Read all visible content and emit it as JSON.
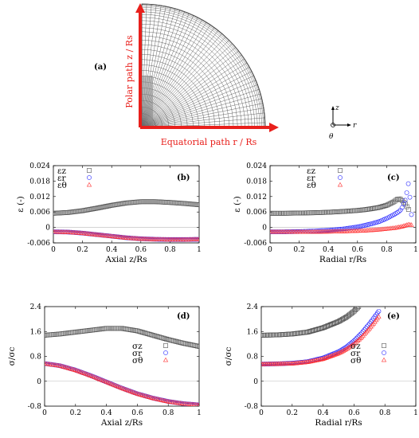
{
  "figure": {
    "panel_a": {
      "label": "(a)",
      "polar_path_label": "Polar path z / Rs",
      "equatorial_path_label": "Equatorial path r / Rs",
      "axes_glyph": {
        "z": "z",
        "r": "r",
        "theta": "θ"
      }
    }
  },
  "colors": {
    "z": "#555555",
    "r": "#2b2bff",
    "theta": "#ff3030",
    "accent": "#e8201c"
  },
  "chart_data": [
    {
      "type": "scatter",
      "panel": "(b)",
      "xlabel": "Axial z/Rs",
      "ylabel": "ε (-)",
      "xlim": [
        0,
        1
      ],
      "ylim": [
        -0.006,
        0.024
      ],
      "xticks": [
        "0",
        "0.2",
        "0.4",
        "0.6",
        "0.8",
        "1"
      ],
      "yticks": [
        "-0.006",
        "0",
        "0.006",
        "0.012",
        "0.018",
        "0.024"
      ],
      "legend": [
        "εz",
        "εr",
        "εθ"
      ],
      "legend_position": "top-left",
      "series": [
        {
          "name": "εz",
          "marker": "square",
          "x": [
            0,
            0.1,
            0.2,
            0.3,
            0.4,
            0.5,
            0.6,
            0.7,
            0.8,
            0.9,
            1.0
          ],
          "y": [
            0.0055,
            0.0058,
            0.0065,
            0.0075,
            0.0086,
            0.0095,
            0.01,
            0.01,
            0.0097,
            0.0093,
            0.0088
          ]
        },
        {
          "name": "εr",
          "marker": "circle",
          "x": [
            0,
            0.1,
            0.2,
            0.3,
            0.4,
            0.5,
            0.6,
            0.7,
            0.8,
            0.9,
            1.0
          ],
          "y": [
            -0.0017,
            -0.0018,
            -0.0022,
            -0.0028,
            -0.0034,
            -0.004,
            -0.0044,
            -0.0046,
            -0.0047,
            -0.0047,
            -0.0046
          ]
        },
        {
          "name": "εθ",
          "marker": "triangle",
          "x": [
            0,
            0.1,
            0.2,
            0.3,
            0.4,
            0.5,
            0.6,
            0.7,
            0.8,
            0.9,
            1.0
          ],
          "y": [
            -0.0017,
            -0.0018,
            -0.0022,
            -0.0028,
            -0.0034,
            -0.004,
            -0.0044,
            -0.0046,
            -0.0047,
            -0.0047,
            -0.0046
          ]
        }
      ]
    },
    {
      "type": "scatter",
      "panel": "(c)",
      "xlabel": "Radial r/Rs",
      "ylabel": "ε (-)",
      "xlim": [
        0,
        1
      ],
      "ylim": [
        -0.006,
        0.024
      ],
      "xticks": [
        "0",
        "0.2",
        "0.4",
        "0.6",
        "0.8",
        "1"
      ],
      "yticks": [
        "-0.006",
        "0",
        "0.006",
        "0.012",
        "0.018",
        "0.024"
      ],
      "legend": [
        "εz",
        "εr",
        "εθ"
      ],
      "legend_position": "top-right",
      "series": [
        {
          "name": "εz",
          "marker": "square",
          "x": [
            0,
            0.1,
            0.2,
            0.3,
            0.4,
            0.5,
            0.6,
            0.65,
            0.7,
            0.75,
            0.8,
            0.85,
            0.88,
            0.9,
            0.93,
            0.95
          ],
          "y": [
            0.0055,
            0.0055,
            0.0056,
            0.0057,
            0.0059,
            0.0062,
            0.0066,
            0.0069,
            0.0073,
            0.0078,
            0.0086,
            0.01,
            0.0112,
            0.0108,
            0.009,
            0.007
          ]
        },
        {
          "name": "εr",
          "marker": "circle",
          "x": [
            0,
            0.1,
            0.2,
            0.3,
            0.4,
            0.5,
            0.6,
            0.65,
            0.7,
            0.75,
            0.8,
            0.85,
            0.88,
            0.9,
            0.93,
            0.95,
            0.97
          ],
          "y": [
            -0.0017,
            -0.0017,
            -0.0016,
            -0.0014,
            -0.0011,
            -0.0006,
            0.0002,
            0.0008,
            0.0015,
            0.0023,
            0.0035,
            0.005,
            0.006,
            0.007,
            0.011,
            0.0175,
            0.005
          ]
        },
        {
          "name": "εθ",
          "marker": "triangle",
          "x": [
            0,
            0.1,
            0.2,
            0.3,
            0.4,
            0.5,
            0.6,
            0.65,
            0.7,
            0.75,
            0.8,
            0.85,
            0.9,
            0.93,
            0.95,
            0.97
          ],
          "y": [
            -0.0017,
            -0.0017,
            -0.0017,
            -0.0017,
            -0.0016,
            -0.0015,
            -0.0013,
            -0.0012,
            -0.001,
            -0.0008,
            -0.0005,
            -0.0002,
            0.0003,
            0.0008,
            0.0012,
            0.001
          ]
        }
      ]
    },
    {
      "type": "scatter",
      "panel": "(d)",
      "xlabel": "Axial z/Rs",
      "ylabel": "σ/σc",
      "xlim": [
        0,
        1
      ],
      "ylim": [
        -0.8,
        2.4
      ],
      "xticks": [
        "0",
        "0.2",
        "0.4",
        "0.6",
        "0.8",
        "1"
      ],
      "yticks": [
        "-0.8",
        "0",
        "0.8",
        "1.6",
        "2.4"
      ],
      "legend": [
        "σz",
        "σr",
        "σθ"
      ],
      "legend_position": "middle-right",
      "series": [
        {
          "name": "σz",
          "marker": "square",
          "x": [
            0,
            0.1,
            0.2,
            0.3,
            0.4,
            0.5,
            0.6,
            0.7,
            0.8,
            0.9,
            1.0
          ],
          "y": [
            1.48,
            1.52,
            1.58,
            1.64,
            1.7,
            1.7,
            1.62,
            1.48,
            1.34,
            1.22,
            1.12
          ]
        },
        {
          "name": "σr",
          "marker": "circle",
          "x": [
            0,
            0.1,
            0.2,
            0.3,
            0.4,
            0.5,
            0.6,
            0.7,
            0.8,
            0.9,
            1.0
          ],
          "y": [
            0.57,
            0.5,
            0.36,
            0.18,
            -0.02,
            -0.22,
            -0.4,
            -0.54,
            -0.65,
            -0.72,
            -0.76
          ]
        },
        {
          "name": "σθ",
          "marker": "triangle",
          "x": [
            0,
            0.1,
            0.2,
            0.3,
            0.4,
            0.5,
            0.6,
            0.7,
            0.8,
            0.9,
            1.0
          ],
          "y": [
            0.57,
            0.5,
            0.36,
            0.18,
            -0.02,
            -0.22,
            -0.4,
            -0.54,
            -0.65,
            -0.72,
            -0.76
          ]
        }
      ]
    },
    {
      "type": "scatter",
      "panel": "(e)",
      "xlabel": "Radial r/Rs",
      "ylabel": "σ/σc",
      "xlim": [
        0,
        1
      ],
      "ylim": [
        -0.8,
        2.4
      ],
      "xticks": [
        "0",
        "0.2",
        "0.4",
        "0.6",
        "0.8",
        "1"
      ],
      "yticks": [
        "-0.8",
        "0",
        "0.8",
        "1.6",
        "2.4"
      ],
      "legend": [
        "σz",
        "σr",
        "σθ"
      ],
      "legend_position": "middle-right",
      "series": [
        {
          "name": "σz",
          "marker": "square",
          "x": [
            0,
            0.1,
            0.2,
            0.3,
            0.4,
            0.5,
            0.55,
            0.6,
            0.63
          ],
          "y": [
            1.48,
            1.49,
            1.52,
            1.58,
            1.72,
            1.92,
            2.06,
            2.25,
            2.4
          ]
        },
        {
          "name": "σr",
          "marker": "circle",
          "x": [
            0,
            0.1,
            0.2,
            0.3,
            0.4,
            0.5,
            0.55,
            0.6,
            0.65,
            0.7,
            0.73,
            0.76
          ],
          "y": [
            0.55,
            0.56,
            0.58,
            0.63,
            0.75,
            0.95,
            1.1,
            1.3,
            1.55,
            1.85,
            2.05,
            2.25
          ]
        },
        {
          "name": "σθ",
          "marker": "triangle",
          "x": [
            0,
            0.1,
            0.2,
            0.3,
            0.4,
            0.5,
            0.55,
            0.6,
            0.65,
            0.7,
            0.73,
            0.76
          ],
          "y": [
            0.55,
            0.56,
            0.57,
            0.62,
            0.72,
            0.9,
            1.03,
            1.2,
            1.42,
            1.7,
            1.88,
            2.08
          ]
        }
      ]
    }
  ]
}
